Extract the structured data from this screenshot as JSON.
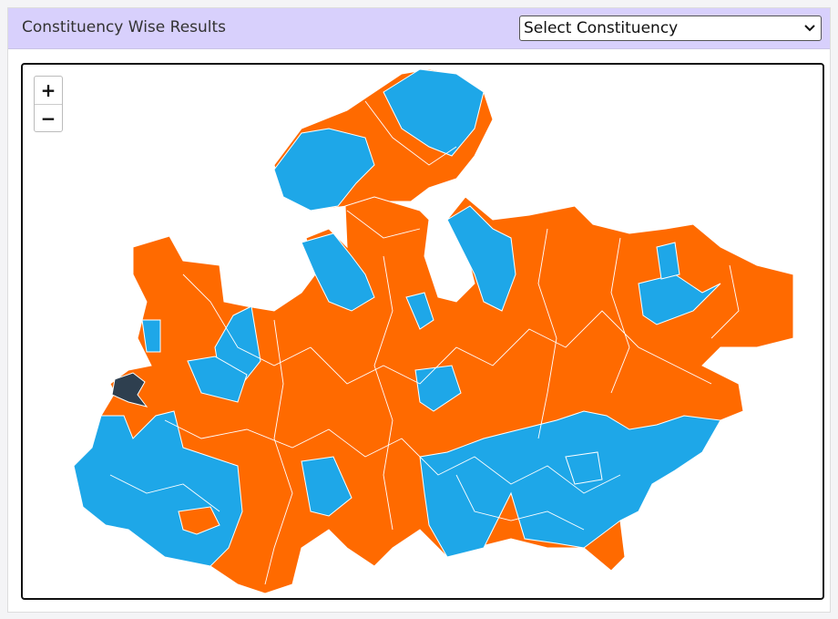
{
  "header": {
    "title": "Constituency Wise Results",
    "select_placeholder": "Select Constituency"
  },
  "map": {
    "zoom_in": "+",
    "zoom_out": "−"
  }
}
